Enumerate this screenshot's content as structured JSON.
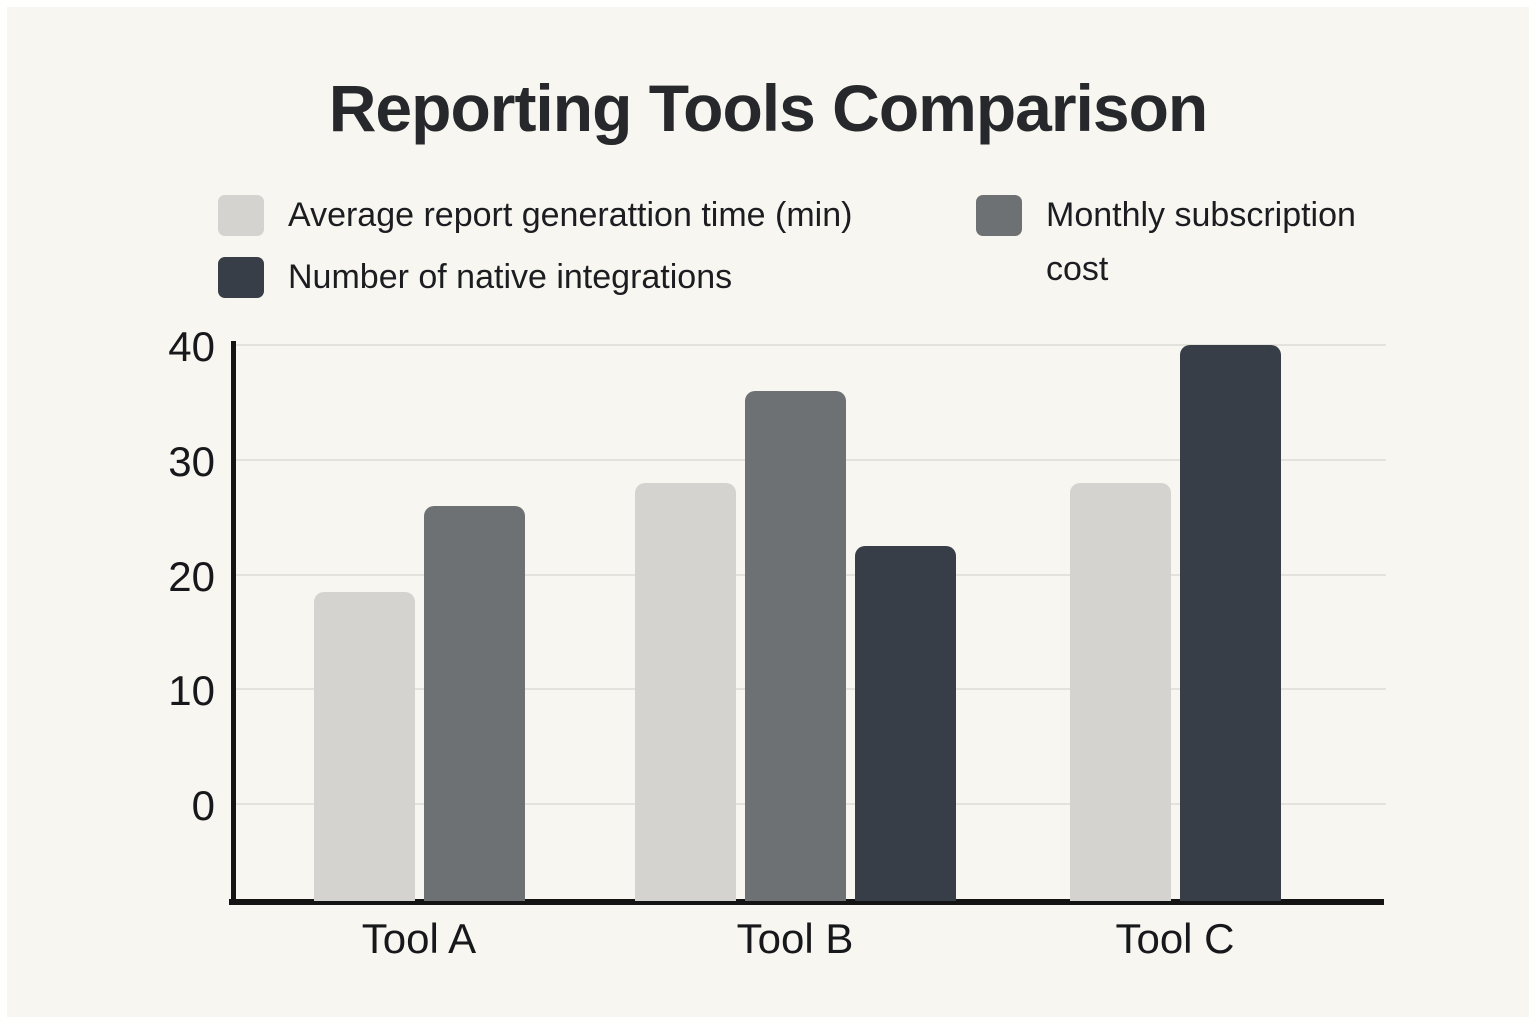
{
  "chart_data": {
    "type": "bar",
    "title": "Reporting Tools Comparison",
    "categories": [
      "Tool A",
      "Tool B",
      "Tool C"
    ],
    "series": [
      {
        "name": "Average report generattion time (min)",
        "key": "light",
        "color": "#d5d3cf",
        "values": [
          18.5,
          28,
          28
        ]
      },
      {
        "name": "Monthly subscription cost",
        "key": "medium",
        "color": "#6e7174",
        "values": [
          26,
          36,
          null
        ]
      },
      {
        "name": "Number of native integrations",
        "key": "dark",
        "color": "#373e47",
        "values": [
          null,
          22.5,
          40
        ]
      }
    ],
    "yticks": [
      0,
      10,
      20,
      30,
      40
    ],
    "ylim": [
      0,
      40
    ],
    "xlabel": "",
    "ylabel": "",
    "grid": true,
    "legend_position": "top",
    "legend_layout": {
      "left_column": [
        "Average report generattion time (min)",
        "Number of native integrations"
      ],
      "right_column": [
        "Monthly subscription cost"
      ]
    }
  },
  "palette": {
    "background": "#f8f6f0",
    "axis": "#141414",
    "gridline": "#e4e2dd",
    "text": "#17181b",
    "bar_light": "#d5d3cf",
    "bar_medium": "#6e7174",
    "bar_dark": "#373e47"
  }
}
